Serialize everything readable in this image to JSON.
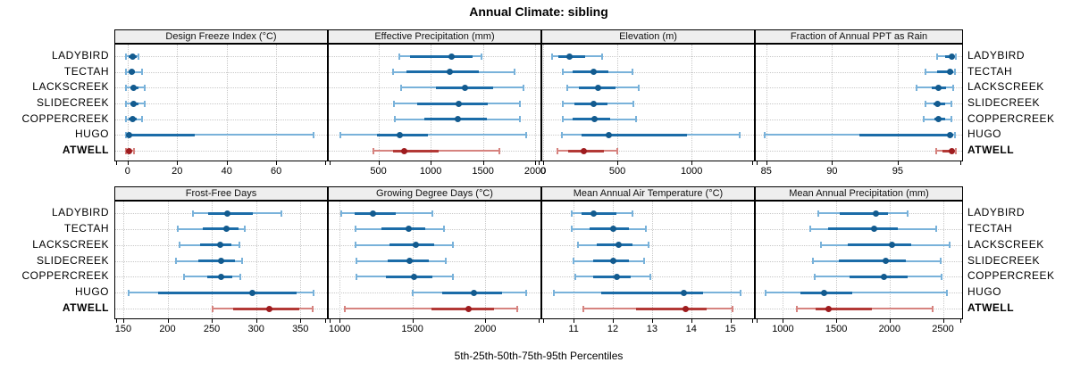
{
  "colors": {
    "blue_range": "#79B2DA",
    "blue_iqr": "#1B6CA8",
    "blue_dot": "#135B8F",
    "red_range": "#D6837F",
    "red_iqr": "#B33936",
    "red_dot": "#9E1C1F",
    "grid": "#C8C8C8",
    "strip_bg": "#EEEEEE",
    "border": "#000000"
  },
  "sites": [
    "LADYBIRD",
    "TECTAH",
    "LACKSCREEK",
    "SLIDECREEK",
    "COPPERCREEK",
    "HUGO",
    "ATWELL"
  ],
  "chart_data": {
    "type": "dot-interval (trellis percentile plot)",
    "title": "Annual Climate: sibling",
    "xlabel": "5th-25th-50th-75th-95th Percentiles",
    "percentile_levels": [
      5,
      25,
      50,
      75,
      95
    ],
    "highlight_site": "ATWELL",
    "legend_position": "none",
    "grid": "dotted",
    "sites": [
      "LADYBIRD",
      "TECTAH",
      "LACKSCREEK",
      "SLIDECREEK",
      "COPPERCREEK",
      "HUGO",
      "ATWELL"
    ],
    "panels": [
      {
        "title": "Design Freeze Index (°C)",
        "xlim": [
          -5,
          80.5
        ],
        "ticks": [
          0,
          20,
          40,
          60
        ],
        "values": [
          [
            -0.5,
            0.5,
            2,
            3.5,
            4.5
          ],
          [
            -0.5,
            0.5,
            1.5,
            3,
            6
          ],
          [
            -0.5,
            1,
            2.5,
            4.5,
            7
          ],
          [
            -0.5,
            1,
            2.5,
            4.5,
            7
          ],
          [
            -0.5,
            0.5,
            2,
            3.5,
            6
          ],
          [
            -0.5,
            0,
            0.5,
            27,
            75
          ],
          [
            -0.5,
            0,
            0.5,
            1.5,
            2.5
          ]
        ]
      },
      {
        "title": "Effective Precipitation (mm)",
        "xlim": [
          25,
          2050
        ],
        "ticks": [
          500,
          1000,
          1500,
          2000
        ],
        "values": [
          [
            700,
            800,
            1200,
            1400,
            1490
          ],
          [
            640,
            770,
            1180,
            1460,
            1800
          ],
          [
            720,
            1050,
            1330,
            1600,
            1890
          ],
          [
            650,
            870,
            1270,
            1550,
            1850
          ],
          [
            660,
            940,
            1260,
            1540,
            1850
          ],
          [
            140,
            490,
            700,
            970,
            1910
          ],
          [
            450,
            640,
            750,
            1080,
            1660
          ]
        ]
      },
      {
        "title": "Elevation (m)",
        "xlim": [
          -6,
          1420
        ],
        "ticks": [
          0,
          500,
          1000
        ],
        "values": [
          [
            60,
            100,
            180,
            280,
            400
          ],
          [
            130,
            200,
            340,
            440,
            600
          ],
          [
            160,
            240,
            370,
            490,
            645
          ],
          [
            130,
            210,
            340,
            435,
            610
          ],
          [
            130,
            200,
            345,
            450,
            625
          ],
          [
            125,
            260,
            440,
            970,
            1325
          ],
          [
            95,
            170,
            275,
            410,
            500
          ]
        ]
      },
      {
        "title": "Fraction of Annual PPT as Rain",
        "xlim": [
          84.2,
          99.9
        ],
        "ticks": [
          85,
          90,
          95
        ],
        "values": [
          [
            98.0,
            98.6,
            99.1,
            99.3,
            99.4
          ],
          [
            97.1,
            98.0,
            99.0,
            99.2,
            99.35
          ],
          [
            96.4,
            97.6,
            98.1,
            98.7,
            99.2
          ],
          [
            97.1,
            97.7,
            98.0,
            98.6,
            99.1
          ],
          [
            97.0,
            97.8,
            98.1,
            98.6,
            99.1
          ],
          [
            84.9,
            92.1,
            99.0,
            99.2,
            99.35
          ],
          [
            97.9,
            98.4,
            99.15,
            99.3,
            99.4
          ]
        ]
      },
      {
        "title": "Frost-Free Days",
        "xlim": [
          141,
          380
        ],
        "ticks": [
          150,
          200,
          250,
          300,
          350
        ],
        "values": [
          [
            229,
            246,
            268,
            296,
            329
          ],
          [
            212,
            240,
            267,
            280,
            287
          ],
          [
            214,
            237,
            259,
            272,
            281
          ],
          [
            210,
            235,
            260,
            276,
            284
          ],
          [
            219,
            245,
            261,
            273,
            282
          ],
          [
            156,
            189,
            296,
            346,
            365
          ],
          [
            251,
            274,
            315,
            349,
            364
          ]
        ]
      },
      {
        "title": "Growing Degree Days (°C)",
        "xlim": [
          925,
          2380
        ],
        "ticks": [
          1000,
          1500,
          2000
        ],
        "values": [
          [
            1010,
            1100,
            1230,
            1385,
            1635
          ],
          [
            1110,
            1290,
            1475,
            1585,
            1715
          ],
          [
            1110,
            1340,
            1525,
            1650,
            1780
          ],
          [
            1115,
            1330,
            1480,
            1610,
            1730
          ],
          [
            1115,
            1320,
            1510,
            1635,
            1780
          ],
          [
            1505,
            1705,
            1920,
            2115,
            2280
          ],
          [
            1035,
            1630,
            1885,
            2060,
            2220
          ]
        ]
      },
      {
        "title": "Mean Annual Air Temperature (°C)",
        "xlim": [
          10.2,
          15.6
        ],
        "ticks": [
          11,
          12,
          13,
          14,
          15
        ],
        "values": [
          [
            10.95,
            11.2,
            11.5,
            12.1,
            12.5
          ],
          [
            10.95,
            11.4,
            12.0,
            12.4,
            12.85
          ],
          [
            11.1,
            11.6,
            12.15,
            12.5,
            12.9
          ],
          [
            11.0,
            11.5,
            12.0,
            12.4,
            12.8
          ],
          [
            11.05,
            11.5,
            12.1,
            12.45,
            12.95
          ],
          [
            10.5,
            11.7,
            13.8,
            14.3,
            15.25
          ],
          [
            11.25,
            12.6,
            13.85,
            14.4,
            15.05
          ]
        ]
      },
      {
        "title": "Mean Annual Precipitation (mm)",
        "xlim": [
          745,
          2680
        ],
        "ticks": [
          1000,
          1500,
          2000,
          2500
        ],
        "values": [
          [
            1330,
            1530,
            1870,
            1985,
            2165
          ],
          [
            1260,
            1420,
            1855,
            2075,
            2435
          ],
          [
            1360,
            1610,
            2025,
            2200,
            2565
          ],
          [
            1280,
            1525,
            1960,
            2155,
            2475
          ],
          [
            1295,
            1625,
            1945,
            2165,
            2490
          ],
          [
            835,
            1165,
            1385,
            1650,
            2535
          ],
          [
            1130,
            1305,
            1425,
            1830,
            2400
          ]
        ]
      }
    ]
  }
}
